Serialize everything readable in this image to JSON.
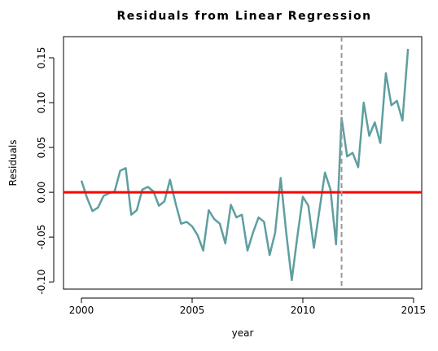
{
  "chart_data": {
    "type": "line",
    "title": "Residuals from Linear Regression",
    "xlabel": "year",
    "ylabel": "Residuals",
    "x": [
      2000,
      2000.25,
      2000.5,
      2000.75,
      2001,
      2001.25,
      2001.5,
      2001.75,
      2002,
      2002.25,
      2002.5,
      2002.75,
      2003,
      2003.25,
      2003.5,
      2003.75,
      2004,
      2004.25,
      2004.5,
      2004.75,
      2005,
      2005.25,
      2005.5,
      2005.75,
      2006,
      2006.25,
      2006.5,
      2006.75,
      2007,
      2007.25,
      2007.5,
      2007.75,
      2008,
      2008.25,
      2008.5,
      2008.75,
      2009,
      2009.25,
      2009.5,
      2009.75,
      2010,
      2010.25,
      2010.5,
      2010.75,
      2011,
      2011.25,
      2011.5,
      2011.75,
      2012,
      2012.25,
      2012.5,
      2012.75,
      2013,
      2013.25,
      2013.5,
      2013.75,
      2014,
      2014.25,
      2014.5,
      2014.75
    ],
    "values": [
      0.013,
      -0.006,
      -0.021,
      -0.017,
      -0.004,
      -0.001,
      0.001,
      0.024,
      0.027,
      -0.025,
      -0.02,
      0.003,
      0.006,
      0.001,
      -0.015,
      -0.01,
      0.014,
      -0.012,
      -0.035,
      -0.033,
      -0.038,
      -0.048,
      -0.065,
      -0.02,
      -0.03,
      -0.035,
      -0.057,
      -0.014,
      -0.028,
      -0.025,
      -0.065,
      -0.045,
      -0.028,
      -0.033,
      -0.07,
      -0.045,
      0.016,
      -0.045,
      -0.098,
      -0.05,
      -0.005,
      -0.015,
      -0.062,
      -0.02,
      0.022,
      0.003,
      -0.058,
      0.083,
      0.04,
      0.044,
      0.028,
      0.1,
      0.063,
      0.078,
      0.055,
      0.133,
      0.097,
      0.102,
      0.08,
      0.16
    ],
    "color": "#5f9ea0",
    "hline": 0,
    "hline_color": "#ff0000",
    "vline": 2011.75,
    "vline_color": "#999999",
    "xlim": [
      1999.19,
      2015.37
    ],
    "ylim": [
      -0.108,
      0.1736
    ],
    "xticks": [
      2000,
      2005,
      2010,
      2015
    ],
    "yticks": [
      {
        "value": -0.1,
        "label": "-0.10"
      },
      -0.05,
      {
        "value": 0,
        "label": "0.00"
      },
      0.05,
      {
        "value": 0.1,
        "label": "0.10"
      },
      0.15
    ]
  }
}
